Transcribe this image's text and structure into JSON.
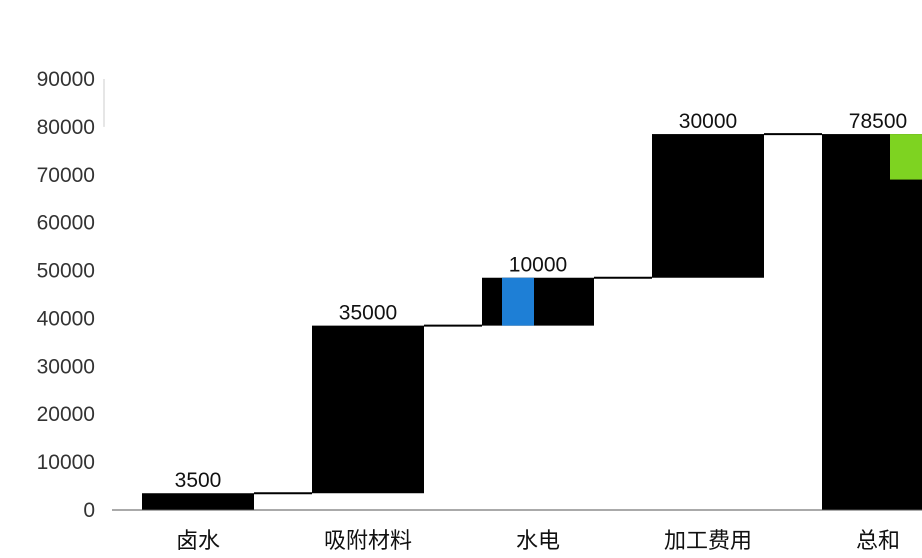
{
  "chart_data": {
    "type": "bar",
    "subtype": "waterfall",
    "categories": [
      "卤水",
      "吸附材料",
      "水电",
      "加工费用",
      "总和"
    ],
    "values": [
      3500,
      35000,
      10000,
      30000,
      78500
    ],
    "is_total": [
      false,
      false,
      false,
      false,
      true
    ],
    "data_labels": [
      "3500",
      "35000",
      "10000",
      "30000",
      "78500"
    ],
    "yticks": [
      0,
      10000,
      20000,
      30000,
      40000,
      50000,
      60000,
      70000,
      80000,
      90000
    ],
    "ylim": [
      0,
      90000
    ],
    "grid": false,
    "legend": "none",
    "colors": {
      "bar": "#000000",
      "connector": "#000000",
      "accent_blue": "#1e7fd6",
      "accent_green": "#7ed321"
    }
  }
}
